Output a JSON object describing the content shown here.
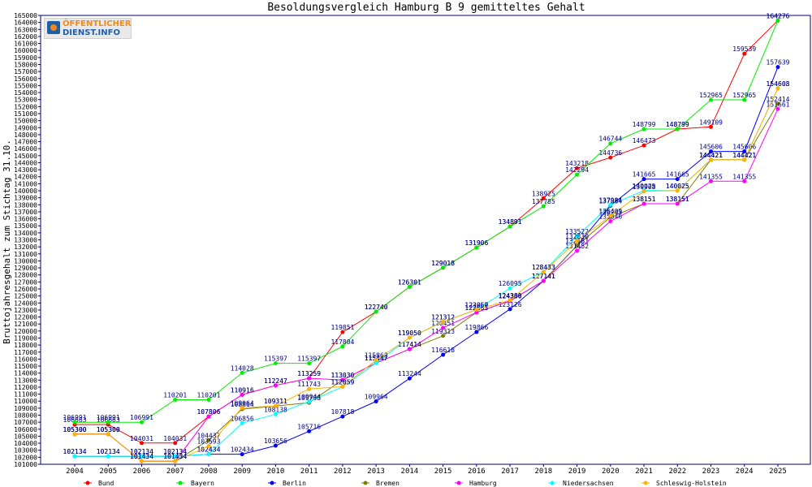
{
  "logo": {
    "line1": "ÖFFENTLICHER",
    "line2": "DIENST.INFO"
  },
  "chart_data": {
    "type": "line",
    "title": "Besoldungsvergleich Hamburg B 9 gemitteltes Gehalt",
    "xlabel": "",
    "ylabel": "Bruttojahresgehalt zum Stichtag 31.10.",
    "x": [
      2004,
      2005,
      2006,
      2007,
      2008,
      2009,
      2010,
      2011,
      2012,
      2013,
      2014,
      2015,
      2016,
      2017,
      2018,
      2019,
      2020,
      2021,
      2022,
      2023,
      2024,
      2025
    ],
    "ylim": [
      101000,
      165000
    ],
    "ytick_step": 1000,
    "grid": false,
    "legend_position": "bottom",
    "series": [
      {
        "name": "Bund",
        "color": "#ff0000",
        "values": [
          106663,
          106663,
          104031,
          104031,
          107806,
          110916,
          112247,
          113259,
          119851,
          122740,
          126301,
          129018,
          131906,
          134891,
          138925,
          143218,
          144736,
          146473,
          148799,
          149109,
          159539,
          164276
        ]
      },
      {
        "name": "Bayern",
        "color": "#00ee00",
        "values": [
          106991,
          106991,
          106991,
          110201,
          110201,
          114028,
          115397,
          115397,
          117804,
          122740,
          126301,
          129018,
          131906,
          134891,
          137785,
          142294,
          146744,
          148799,
          148799,
          152965,
          152965,
          164276
        ]
      },
      {
        "name": "Berlin",
        "color": "#0000ff",
        "values": [
          102134,
          102134,
          102134,
          102134,
          102434,
          102434,
          103656,
          105716,
          107818,
          109964,
          113244,
          116618,
          119866,
          123126,
          127141,
          132181,
          137884,
          141665,
          141665,
          145606,
          145606,
          157639
        ]
      },
      {
        "name": "Bremen",
        "color": "#808000",
        "values": [
          105300,
          105300,
          101434,
          101434,
          104437,
          108864,
          109311,
          109788,
          113030,
          115447,
          117414,
          119313,
          122663,
          124300,
          127141,
          132181,
          136243,
          138151,
          138151,
          144421,
          144421,
          152414
        ]
      },
      {
        "name": "Hamburg",
        "color": "#ff00ff",
        "values": [
          105300,
          105300,
          101434,
          101434,
          107806,
          110916,
          112247,
          113259,
          113030,
          115447,
          117414,
          120451,
          122663,
          124300,
          127141,
          131452,
          135646,
          138151,
          138151,
          141355,
          141355,
          151661
        ]
      },
      {
        "name": "Niedersachsen",
        "color": "#00ffff",
        "values": [
          102134,
          102134,
          102134,
          102134,
          102434,
          106856,
          108138,
          109944,
          112059,
          115447,
          119050,
          121312,
          123060,
          126095,
          128433,
          133522,
          137984,
          140025,
          140025,
          144421,
          144421,
          154608
        ]
      },
      {
        "name": "Schleswig-Holstein",
        "color": "#ffb000",
        "values": [
          105300,
          105300,
          101434,
          101434,
          103593,
          109064,
          109311,
          111743,
          112059,
          115863,
          119050,
          121312,
          123057,
          124380,
          128433,
          132830,
          136409,
          139908,
          140025,
          144421,
          144421,
          154603
        ]
      }
    ]
  }
}
